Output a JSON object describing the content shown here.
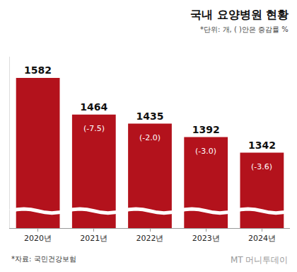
{
  "chart_data": {
    "type": "bar",
    "title": "국내 요양병원 현황",
    "subtitle": "*단위: 개, ( )안은 증감률 %",
    "source": "*자료: 국민건강보험",
    "watermark": "MT 머니투데이",
    "categories": [
      "2020년",
      "2021년",
      "2022년",
      "2023년",
      "2024년"
    ],
    "values": [
      1582,
      1464,
      1435,
      1392,
      1342
    ],
    "growth_rates": [
      null,
      -7.5,
      -2.0,
      -3.0,
      -3.6
    ],
    "growth_rate_labels": [
      null,
      "(-7.5)",
      "(-2.0)",
      "(-3.0)",
      "(-3.6)"
    ],
    "color": "#b3121c",
    "ylim": [
      1100,
      1650
    ],
    "grid": false,
    "data_labels": true,
    "tick_labels": "x"
  }
}
